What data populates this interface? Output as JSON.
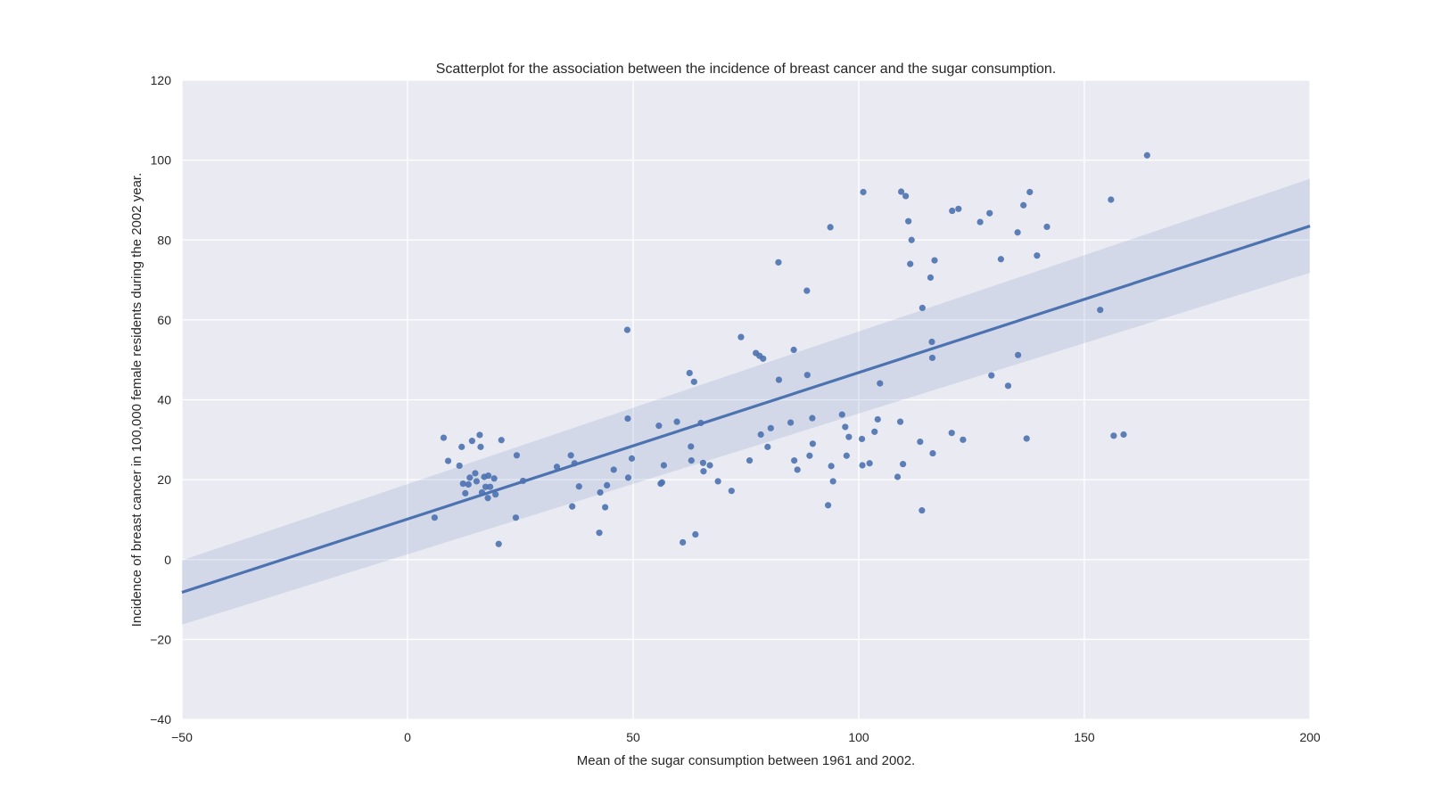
{
  "chart_data": {
    "type": "scatter",
    "title": "Scatterplot for the association between the incidence of breast cancer and the sugar consumption.",
    "xlabel": "Mean of the sugar consumption between 1961 and 2002.",
    "ylabel": "Incidence of breast cancer in 100,000 female residents during the 2002 year.",
    "xlim": [
      -50,
      200
    ],
    "ylim": [
      -40,
      120
    ],
    "xticks": [
      -50,
      0,
      50,
      100,
      150,
      200
    ],
    "xtick_labels": [
      "−50",
      "0",
      "50",
      "100",
      "150",
      "200"
    ],
    "yticks": [
      -40,
      -20,
      0,
      20,
      40,
      60,
      80,
      100,
      120
    ],
    "ytick_labels": [
      "−40",
      "−20",
      "0",
      "20",
      "40",
      "60",
      "80",
      "100",
      "120"
    ],
    "grid": true,
    "colors": {
      "background": "#eaeaf2",
      "grid": "#ffffff",
      "points": "#4c72b0",
      "line": "#4c72b0",
      "band": "#4c72b0"
    },
    "regression": {
      "x": [
        -50,
        200
      ],
      "y": [
        -8.2,
        83.5
      ],
      "ci_lower": [
        -16.3,
        71.8
      ],
      "ci_upper": [
        -0.2,
        95.3
      ]
    },
    "points": [
      [
        6,
        10.5
      ],
      [
        8,
        30.5
      ],
      [
        9,
        24.7
      ],
      [
        11.5,
        23.5
      ],
      [
        12,
        28.2
      ],
      [
        12.3,
        19
      ],
      [
        12.8,
        16.6
      ],
      [
        13.5,
        18.8
      ],
      [
        13.8,
        20.5
      ],
      [
        14.3,
        29.7
      ],
      [
        15,
        21.6
      ],
      [
        15.3,
        19.6
      ],
      [
        16,
        31.2
      ],
      [
        16.2,
        28.2
      ],
      [
        16.5,
        16.8
      ],
      [
        17,
        20.7
      ],
      [
        17.3,
        18.2
      ],
      [
        17.8,
        15.4
      ],
      [
        17.9,
        21
      ],
      [
        18.3,
        18.2
      ],
      [
        19.2,
        20.3
      ],
      [
        19.5,
        16.3
      ],
      [
        20.2,
        3.9
      ],
      [
        20.8,
        29.9
      ],
      [
        24,
        10.5
      ],
      [
        24.2,
        26.1
      ],
      [
        25.6,
        19.7
      ],
      [
        33.1,
        23.2
      ],
      [
        36.2,
        26.1
      ],
      [
        36.5,
        13.3
      ],
      [
        37,
        24.1
      ],
      [
        38,
        18.3
      ],
      [
        42.5,
        6.7
      ],
      [
        42.7,
        16.8
      ],
      [
        43.8,
        13.1
      ],
      [
        44.2,
        18.6
      ],
      [
        45.7,
        22.5
      ],
      [
        48.7,
        57.5
      ],
      [
        48.8,
        35.3
      ],
      [
        48.9,
        20.5
      ],
      [
        49.7,
        25.3
      ],
      [
        55.7,
        33.5
      ],
      [
        56.1,
        19
      ],
      [
        56.4,
        19.3
      ],
      [
        56.8,
        23.6
      ],
      [
        59.7,
        34.5
      ],
      [
        61,
        4.3
      ],
      [
        62.5,
        46.7
      ],
      [
        62.8,
        28.3
      ],
      [
        62.9,
        24.8
      ],
      [
        63.5,
        44.5
      ],
      [
        63.8,
        6.3
      ],
      [
        65,
        34.2
      ],
      [
        65.5,
        24.2
      ],
      [
        65.6,
        22.1
      ],
      [
        67,
        23.6
      ],
      [
        68.8,
        19.6
      ],
      [
        71.8,
        17.2
      ],
      [
        73.9,
        55.7
      ],
      [
        75.8,
        24.8
      ],
      [
        77.2,
        51.7
      ],
      [
        78,
        51
      ],
      [
        78.3,
        31.3
      ],
      [
        78.8,
        50.3
      ],
      [
        79.8,
        28.2
      ],
      [
        80.5,
        32.9
      ],
      [
        82.2,
        74.4
      ],
      [
        82.3,
        45
      ],
      [
        84.9,
        34.3
      ],
      [
        85.6,
        52.5
      ],
      [
        85.7,
        24.8
      ],
      [
        86.4,
        22.5
      ],
      [
        88.5,
        67.3
      ],
      [
        88.6,
        46.2
      ],
      [
        89.1,
        26
      ],
      [
        89.7,
        35.4
      ],
      [
        89.8,
        29
      ],
      [
        93.2,
        13.6
      ],
      [
        93.7,
        83.2
      ],
      [
        93.9,
        23.4
      ],
      [
        94.3,
        19.6
      ],
      [
        96.3,
        36.3
      ],
      [
        97,
        33.2
      ],
      [
        97.3,
        26
      ],
      [
        97.8,
        30.7
      ],
      [
        100.7,
        30.2
      ],
      [
        100.8,
        23.6
      ],
      [
        101,
        92
      ],
      [
        102.4,
        24.1
      ],
      [
        103.5,
        32
      ],
      [
        104.2,
        35.1
      ],
      [
        104.7,
        44.1
      ],
      [
        108.6,
        20.7
      ],
      [
        109.2,
        34.5
      ],
      [
        109.4,
        92.1
      ],
      [
        109.8,
        23.9
      ],
      [
        110.4,
        91
      ],
      [
        111,
        84.7
      ],
      [
        111.4,
        74
      ],
      [
        111.7,
        80
      ],
      [
        113.6,
        29.5
      ],
      [
        114,
        12.3
      ],
      [
        114.1,
        63
      ],
      [
        115.9,
        70.6
      ],
      [
        116.2,
        54.5
      ],
      [
        116.3,
        50.5
      ],
      [
        116.4,
        26.6
      ],
      [
        116.8,
        74.9
      ],
      [
        120.6,
        31.7
      ],
      [
        120.7,
        87.3
      ],
      [
        122.1,
        87.8
      ],
      [
        123.1,
        30
      ],
      [
        126.9,
        84.5
      ],
      [
        129,
        86.7
      ],
      [
        129.4,
        46.1
      ],
      [
        131.5,
        75.2
      ],
      [
        133.1,
        43.5
      ],
      [
        135.2,
        81.9
      ],
      [
        135.3,
        51.2
      ],
      [
        136.5,
        88.7
      ],
      [
        137.2,
        30.3
      ],
      [
        137.9,
        92
      ],
      [
        139.5,
        76.1
      ],
      [
        141.7,
        83.3
      ],
      [
        153.5,
        62.5
      ],
      [
        155.9,
        90.1
      ],
      [
        156.5,
        31
      ],
      [
        158.7,
        31.3
      ],
      [
        163.9,
        101.2
      ]
    ]
  }
}
